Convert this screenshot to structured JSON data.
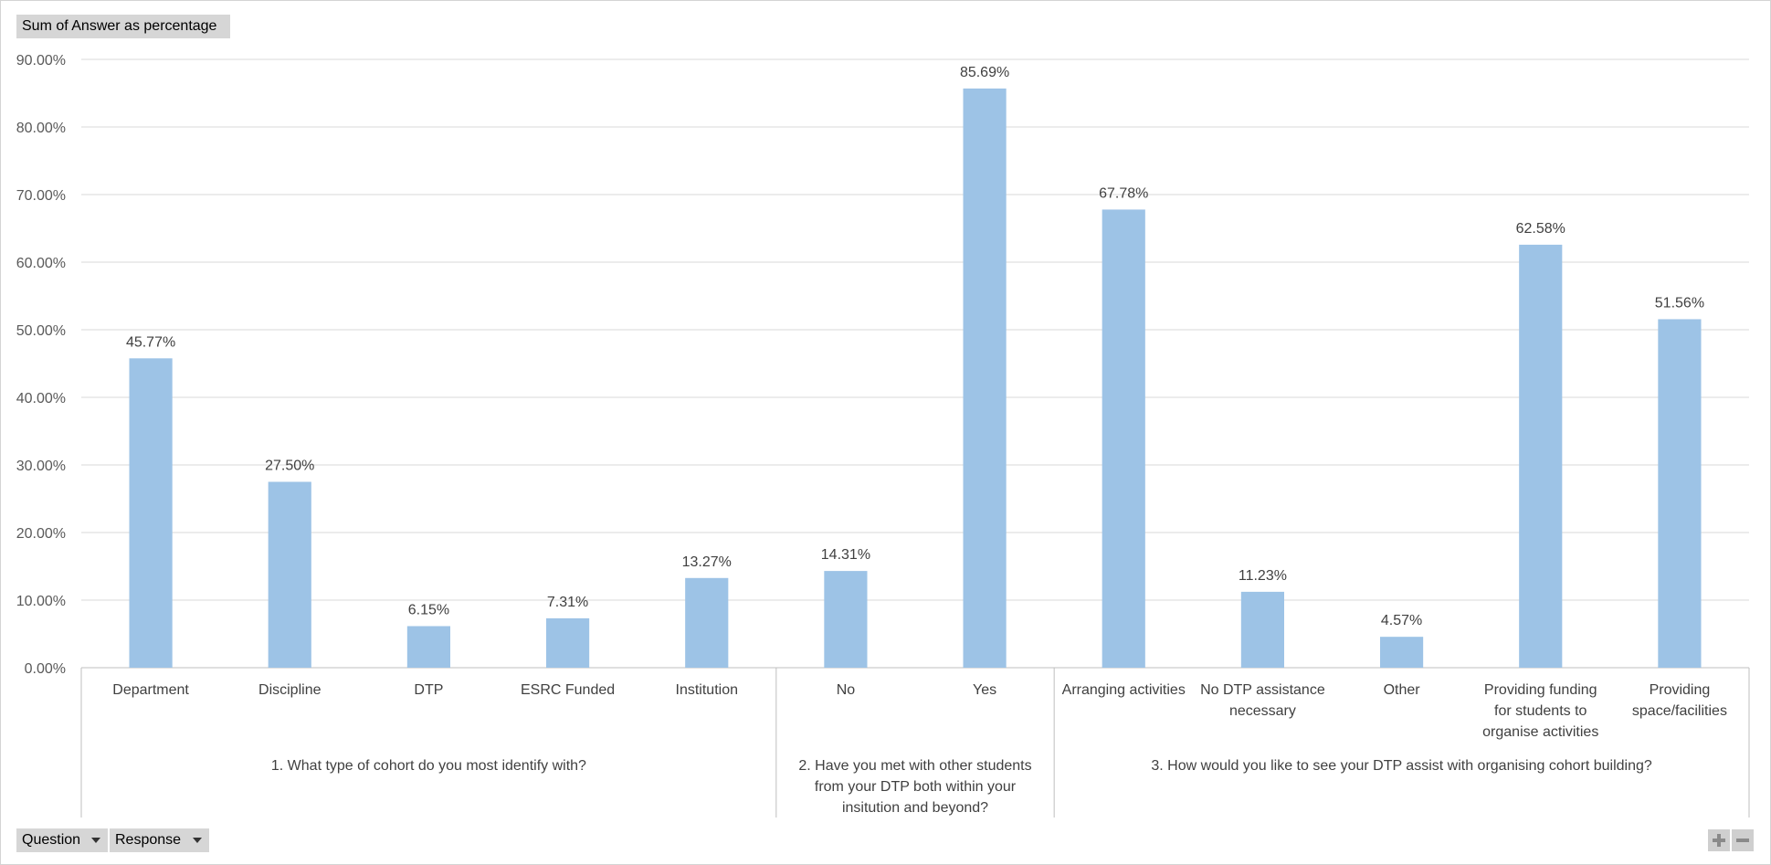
{
  "value_field": "Sum of Answer as percentage",
  "row_fields": [
    {
      "label": "Question"
    },
    {
      "label": "Response"
    }
  ],
  "chart_data": {
    "type": "bar",
    "ylim": [
      0,
      90
    ],
    "y_ticks": [
      "0.00%",
      "10.00%",
      "20.00%",
      "30.00%",
      "40.00%",
      "50.00%",
      "60.00%",
      "70.00%",
      "80.00%",
      "90.00%"
    ],
    "grid": true,
    "bar_color": "#9dc3e6",
    "groups": [
      {
        "label_lines": [
          "1. What type of cohort do you most identify with?"
        ],
        "items": [
          {
            "label_lines": [
              "Department"
            ],
            "value": 45.77,
            "label": "45.77%"
          },
          {
            "label_lines": [
              "Discipline"
            ],
            "value": 27.5,
            "label": "27.50%"
          },
          {
            "label_lines": [
              "DTP"
            ],
            "value": 6.15,
            "label": "6.15%"
          },
          {
            "label_lines": [
              "ESRC Funded"
            ],
            "value": 7.31,
            "label": "7.31%"
          },
          {
            "label_lines": [
              "Institution"
            ],
            "value": 13.27,
            "label": "13.27%"
          }
        ]
      },
      {
        "label_lines": [
          "2. Have you met with other students",
          "from your DTP both within your",
          "insitution and beyond?"
        ],
        "items": [
          {
            "label_lines": [
              "No"
            ],
            "value": 14.31,
            "label": "14.31%"
          },
          {
            "label_lines": [
              "Yes"
            ],
            "value": 85.69,
            "label": "85.69%"
          }
        ]
      },
      {
        "label_lines": [
          "3. How would you like to see your DTP assist with organising cohort building?"
        ],
        "items": [
          {
            "label_lines": [
              "Arranging activities"
            ],
            "value": 67.78,
            "label": "67.78%"
          },
          {
            "label_lines": [
              "No DTP assistance",
              "necessary"
            ],
            "value": 11.23,
            "label": "11.23%"
          },
          {
            "label_lines": [
              "Other"
            ],
            "value": 4.57,
            "label": "4.57%"
          },
          {
            "label_lines": [
              "Providing funding",
              "for students to",
              "organise activities"
            ],
            "value": 62.58,
            "label": "62.58%"
          },
          {
            "label_lines": [
              "Providing",
              "space/facilities"
            ],
            "value": 51.56,
            "label": "51.56%"
          }
        ]
      }
    ]
  }
}
